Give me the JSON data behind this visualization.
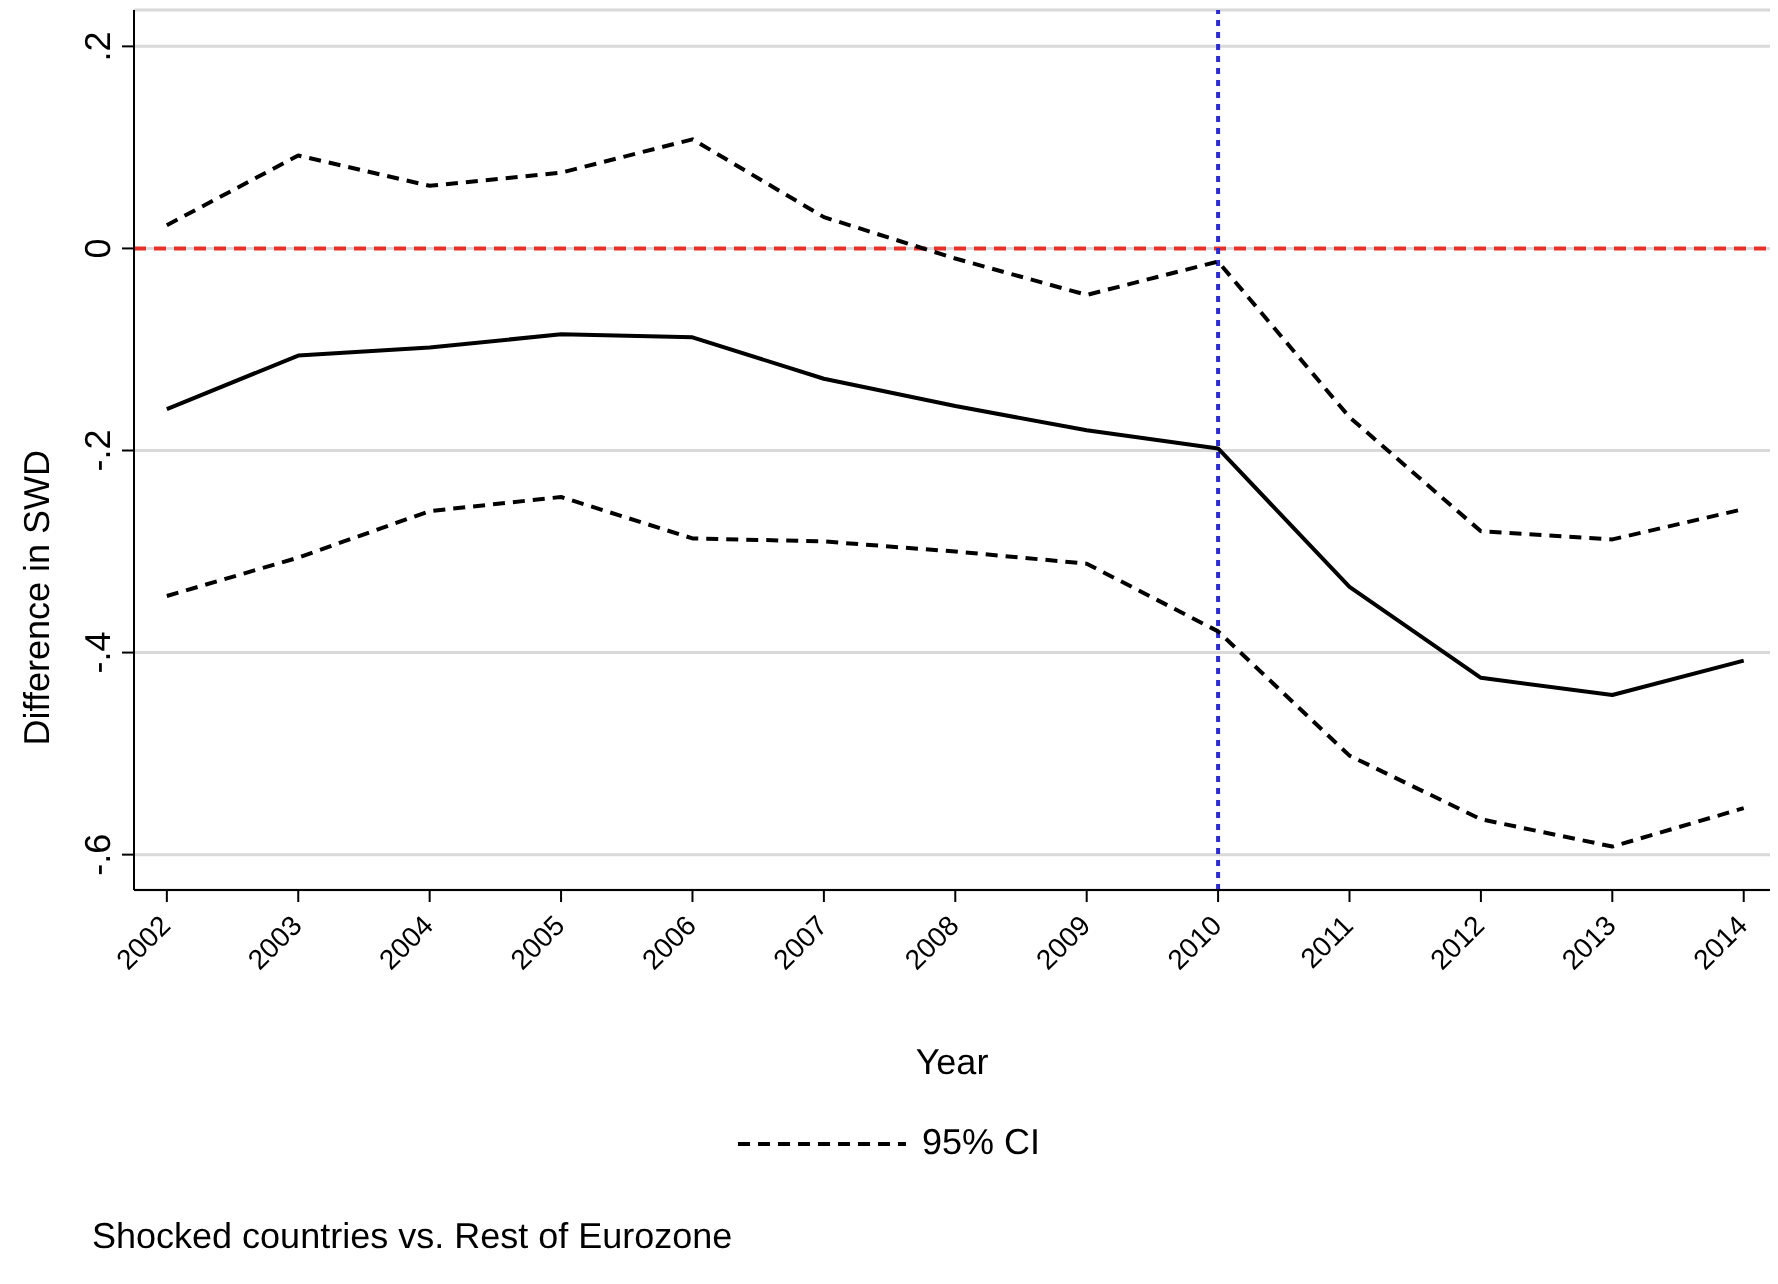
{
  "chart_data": {
    "type": "line",
    "xlabel": "Year",
    "ylabel": "Difference in SWD",
    "x": [
      2002,
      2003,
      2004,
      2005,
      2006,
      2007,
      2008,
      2009,
      2010,
      2011,
      2012,
      2013,
      2014
    ],
    "series": [
      {
        "color": "#000000",
        "line_style": "solid",
        "values": [
          -0.159,
          -0.106,
          -0.098,
          -0.085,
          -0.088,
          -0.129,
          -0.156,
          -0.18,
          -0.198,
          -0.335,
          -0.425,
          -0.442,
          -0.408
        ]
      },
      {
        "name": "95% CI",
        "color": "#000000",
        "line_style": "dashed",
        "values": [
          0.023,
          0.092,
          0.062,
          0.075,
          0.108,
          0.031,
          -0.01,
          -0.046,
          -0.013,
          -0.167,
          -0.28,
          -0.288,
          -0.258
        ]
      },
      {
        "color": "#000000",
        "line_style": "dashed",
        "values": [
          -0.344,
          -0.306,
          -0.26,
          -0.246,
          -0.287,
          -0.29,
          -0.3,
          -0.312,
          -0.379,
          -0.502,
          -0.565,
          -0.592,
          -0.554
        ]
      }
    ],
    "xlim": [
      2001.75,
      2014.2
    ],
    "xticks": [
      2002,
      2003,
      2004,
      2005,
      2006,
      2007,
      2008,
      2009,
      2010,
      2011,
      2012,
      2013,
      2014
    ],
    "ylim": [
      -0.635,
      0.236
    ],
    "yticks": [
      {
        "value": -0.6,
        "label": "-.6"
      },
      {
        "value": -0.4,
        "label": "-.4"
      },
      {
        "value": -0.2,
        "label": "-.2"
      },
      0,
      {
        "value": 0.2,
        "label": ".2"
      }
    ],
    "ref_lines": [
      {
        "axis": "y",
        "value": 0,
        "color": "#e8302a",
        "line_style": "dashed"
      },
      {
        "axis": "x",
        "value": 2010,
        "color": "#2b2bd0",
        "line_style": "dotted"
      }
    ],
    "grid": "y",
    "legend": "bottom",
    "marker": "none",
    "annotations": [
      "Shocked countries vs. Rest of Eurozone"
    ]
  }
}
